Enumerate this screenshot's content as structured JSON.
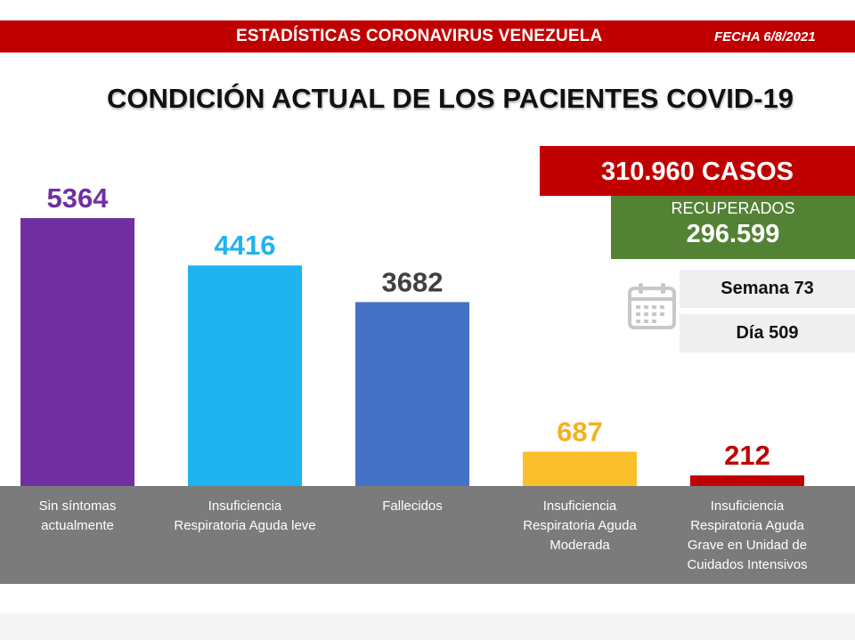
{
  "header": {
    "title": "ESTADÍSTICAS CORONAVIRUS VENEZUELA",
    "date": "FECHA 6/8/2021"
  },
  "stats": {
    "casos": "310.960 CASOS",
    "recuperados_label": "RECUPERADOS",
    "recuperados_value": "296.599",
    "semana": "Semana 73",
    "dia": "Día 509"
  },
  "chart_data": {
    "type": "bar",
    "title": "CONDICIÓN ACTUAL DE LOS PACIENTES COVID-19",
    "categories": [
      [
        "Sin síntomas",
        "actualmente"
      ],
      [
        "Insuficiencia",
        "Respiratoria Aguda leve"
      ],
      [
        "Fallecidos"
      ],
      [
        "Insuficiencia",
        "Respiratoria Aguda",
        "Moderada"
      ],
      [
        "Insuficiencia",
        "Respiratoria Aguda",
        "Grave en Unidad de",
        "Cuidados Intensivos"
      ]
    ],
    "values": [
      5364,
      4416,
      3682,
      687,
      212
    ],
    "colors": [
      "#7030a0",
      "#1fb3ef",
      "#4472c4",
      "#fbbf2b",
      "#c00000"
    ],
    "label_colors": [
      "#7030a0",
      "#1fb3ef",
      "#404040",
      "#f5b020",
      "#c00000"
    ],
    "ylim": [
      0,
      5364
    ],
    "grid": false,
    "legend": "none"
  }
}
